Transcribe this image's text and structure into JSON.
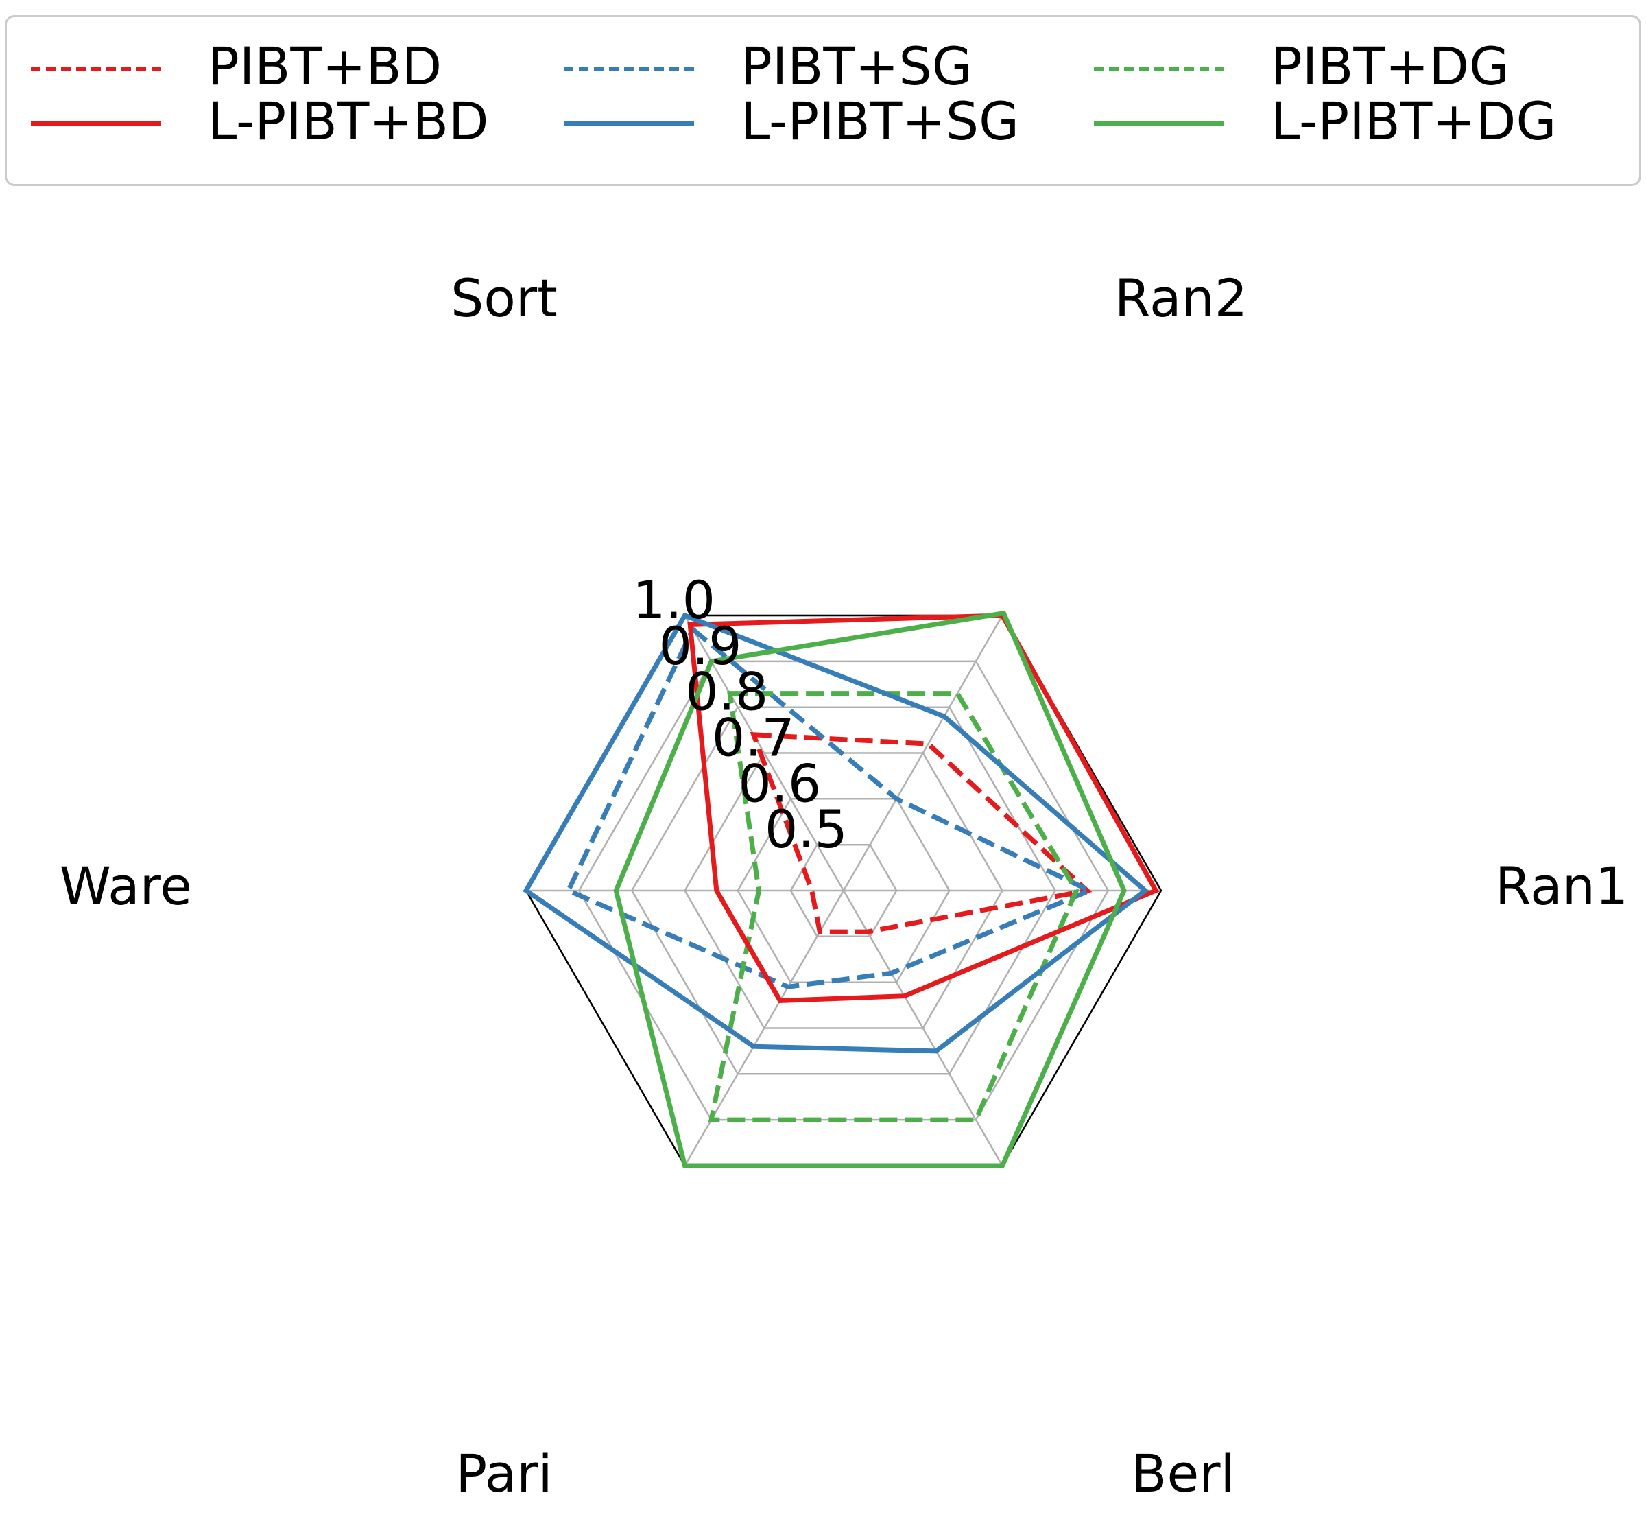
{
  "chart_data": {
    "type": "radar",
    "axes": [
      "Sort",
      "Ran2",
      "Ran1",
      "Berl",
      "Pari",
      "Ware"
    ],
    "radial_ticks": [
      "0.5",
      "0.6",
      "0.7",
      "0.8",
      "0.9",
      "1.0"
    ],
    "rlim": [
      0.4,
      1.0
    ],
    "grid": true,
    "legend_position": "top",
    "series": [
      {
        "name": "PIBT+BD",
        "style": "dashed",
        "color": "#e41a1c",
        "values": [
          0.74,
          0.72,
          0.86,
          0.49,
          0.49,
          0.46
        ]
      },
      {
        "name": "L-PIBT+BD",
        "style": "solid",
        "color": "#e41a1c",
        "values": [
          0.98,
          1.0,
          0.99,
          0.63,
          0.64,
          0.64
        ]
      },
      {
        "name": "PIBT+SG",
        "style": "dashed",
        "color": "#377eb8",
        "values": [
          0.97,
          0.6,
          0.865,
          0.58,
          0.61,
          0.92
        ]
      },
      {
        "name": "L-PIBT+SG",
        "style": "solid",
        "color": "#377eb8",
        "values": [
          1.0,
          0.78,
          0.97,
          0.75,
          0.74,
          1.0
        ]
      },
      {
        "name": "PIBT+DG",
        "style": "dashed",
        "color": "#4daf4a",
        "values": [
          0.83,
          0.83,
          0.84,
          0.9,
          0.9,
          0.56
        ]
      },
      {
        "name": "L-PIBT+DG",
        "style": "solid",
        "color": "#4daf4a",
        "values": [
          0.9,
          1.005,
          0.93,
          1.0,
          1.0,
          0.83
        ]
      }
    ]
  }
}
